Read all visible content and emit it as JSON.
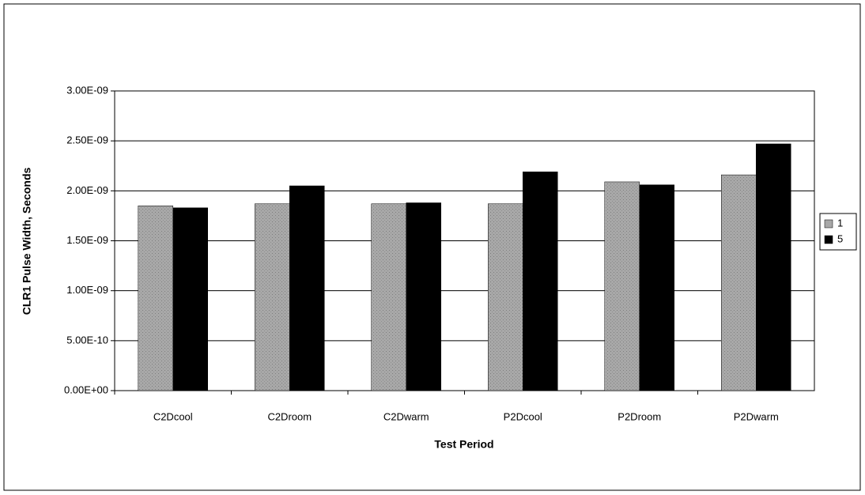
{
  "chart_data": {
    "type": "bar",
    "x_label": "Test Period",
    "y_label": "CLR1 Pulse Width, Seconds",
    "categories": [
      "C2Dcool",
      "C2Droom",
      "C2Dwarm",
      "P2Dcool",
      "P2Droom",
      "P2Dwarm"
    ],
    "series": [
      {
        "name": "1",
        "color": "#a8a8a8",
        "values": [
          1.85e-09,
          1.87e-09,
          1.87e-09,
          1.87e-09,
          2.09e-09,
          2.16e-09
        ]
      },
      {
        "name": "5",
        "color": "#000000",
        "values": [
          1.83e-09,
          2.05e-09,
          1.88e-09,
          2.19e-09,
          2.06e-09,
          2.47e-09
        ]
      }
    ],
    "ylim": [
      0,
      3e-09
    ],
    "yticks": [
      {
        "value": 0,
        "label": "0.00E+00"
      },
      {
        "value": 5e-10,
        "label": "5.00E-10"
      },
      {
        "value": 1e-09,
        "label": "1.00E-09"
      },
      {
        "value": 1.5e-09,
        "label": "1.50E-09"
      },
      {
        "value": 2e-09,
        "label": "2.00E-09"
      },
      {
        "value": 2.5e-09,
        "label": "2.50E-09"
      },
      {
        "value": 3e-09,
        "label": "3.00E-09"
      }
    ],
    "grid": true,
    "legend": "right"
  }
}
